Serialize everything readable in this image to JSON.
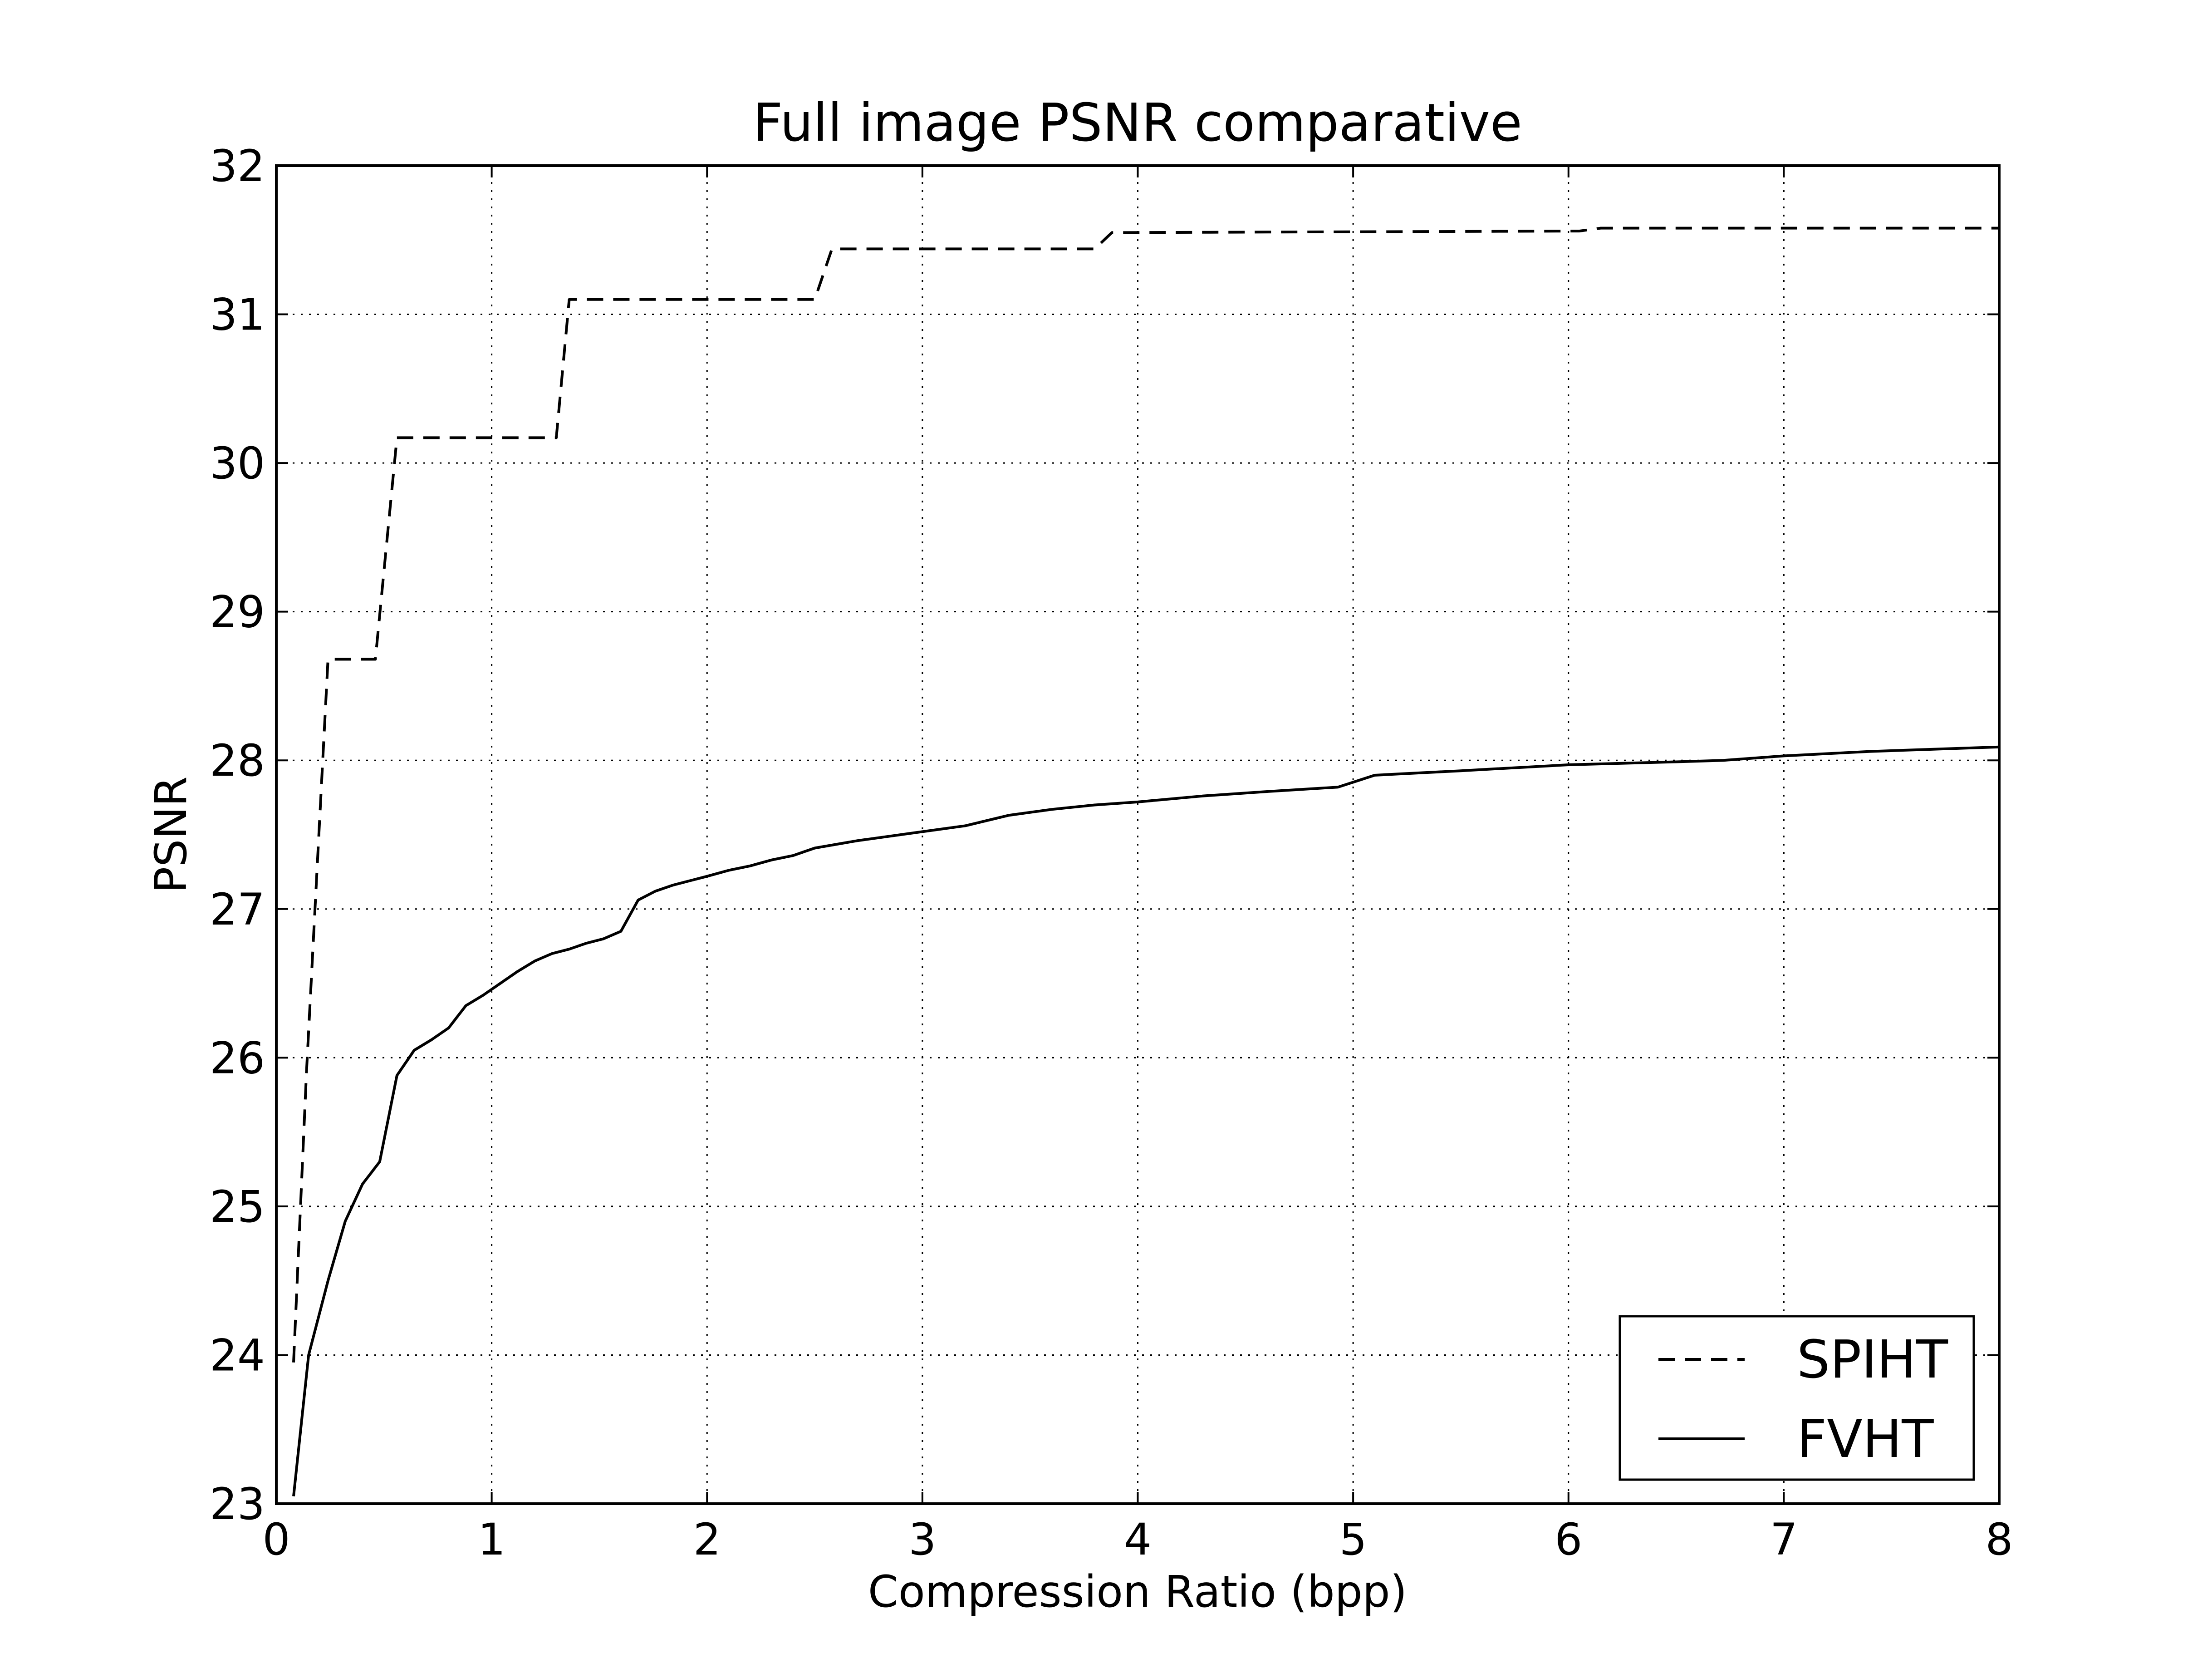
{
  "chart_data": {
    "type": "line",
    "title": "Full image PSNR comparative",
    "xlabel": "Compression Ratio (bpp)",
    "ylabel": "PSNR",
    "xlim": [
      0,
      8
    ],
    "ylim": [
      23,
      32
    ],
    "xticks": [
      "0",
      "1",
      "2",
      "3",
      "4",
      "5",
      "6",
      "7",
      "8"
    ],
    "yticks": [
      "23",
      "24",
      "25",
      "26",
      "27",
      "28",
      "29",
      "30",
      "31",
      "32"
    ],
    "grid": true,
    "legend_position": "lower-right",
    "series": [
      {
        "name": "SPIHT",
        "style": "dashed",
        "color": "#000000",
        "x": [
          0.08,
          0.14,
          0.24,
          0.46,
          0.56,
          1.3,
          1.36,
          2.5,
          2.58,
          3.8,
          3.88,
          6.05,
          6.15,
          8.0
        ],
        "y": [
          23.95,
          25.9,
          28.68,
          28.68,
          30.17,
          30.17,
          31.1,
          31.1,
          31.44,
          31.44,
          31.55,
          31.56,
          31.58,
          31.58
        ]
      },
      {
        "name": "FVHT",
        "style": "solid",
        "color": "#000000",
        "x": [
          0.08,
          0.15,
          0.24,
          0.32,
          0.4,
          0.48,
          0.56,
          0.64,
          0.72,
          0.8,
          0.88,
          0.96,
          1.04,
          1.12,
          1.2,
          1.28,
          1.36,
          1.44,
          1.52,
          1.6,
          1.68,
          1.76,
          1.84,
          1.92,
          2.0,
          2.1,
          2.2,
          2.3,
          2.4,
          2.5,
          2.7,
          3.0,
          3.2,
          3.4,
          3.6,
          3.8,
          4.0,
          4.3,
          4.6,
          4.93,
          5.1,
          5.5,
          6.0,
          6.5,
          6.72,
          7.0,
          7.4,
          8.0
        ],
        "y": [
          23.05,
          24.0,
          24.5,
          24.9,
          25.15,
          25.3,
          25.88,
          26.05,
          26.12,
          26.2,
          26.35,
          26.42,
          26.5,
          26.58,
          26.65,
          26.7,
          26.73,
          26.77,
          26.8,
          26.85,
          27.06,
          27.12,
          27.16,
          27.19,
          27.22,
          27.26,
          27.29,
          27.33,
          27.36,
          27.41,
          27.46,
          27.52,
          27.56,
          27.63,
          27.67,
          27.7,
          27.72,
          27.76,
          27.79,
          27.82,
          27.9,
          27.93,
          27.97,
          27.99,
          28.0,
          28.03,
          28.06,
          28.09
        ]
      }
    ]
  }
}
